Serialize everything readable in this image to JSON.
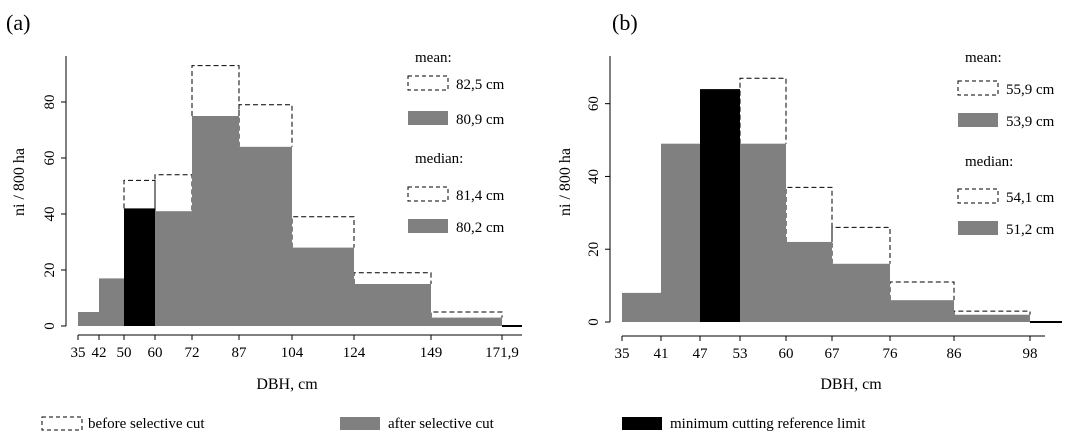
{
  "chart_data": [
    {
      "type": "bar",
      "panel_label": "(a)",
      "xlabel": "DBH, cm",
      "ylabel": "ni / 800 ha",
      "ylim": [
        0,
        95
      ],
      "yticks": [
        0,
        20,
        40,
        60,
        80
      ],
      "xticks": [
        "35",
        "42",
        "50",
        "60",
        "72",
        "87",
        "104",
        "124",
        "149",
        "171,9"
      ],
      "bin_edges": [
        35,
        42,
        50,
        60,
        72,
        87,
        104,
        124,
        149,
        171.9
      ],
      "series": [
        {
          "name": "before selective cut",
          "values": [
            5,
            17,
            52,
            54,
            93,
            79,
            39,
            19,
            5,
            0
          ]
        },
        {
          "name": "after selective cut",
          "values": [
            5,
            17,
            42,
            41,
            75,
            64,
            28,
            15,
            3,
            0
          ]
        }
      ],
      "reference_bin_index": 2,
      "legend": {
        "mean_title": "mean:",
        "mean_before": "82,5 cm",
        "mean_after": "80,9 cm",
        "median_title": "median:",
        "median_before": "81,4 cm",
        "median_after": "80,2 cm"
      }
    },
    {
      "type": "bar",
      "panel_label": "(b)",
      "xlabel": "DBH, cm",
      "ylabel": "ni / 800 ha",
      "ylim": [
        0,
        72
      ],
      "yticks": [
        0,
        20,
        40,
        60
      ],
      "xticks": [
        "35",
        "41",
        "47",
        "53",
        "60",
        "67",
        "76",
        "86",
        "98"
      ],
      "bin_edges": [
        35,
        41,
        47,
        53,
        60,
        67,
        76,
        86,
        98,
        102
      ],
      "series": [
        {
          "name": "before selective cut",
          "values": [
            8,
            49,
            64,
            67,
            37,
            26,
            11,
            3,
            0
          ]
        },
        {
          "name": "after selective cut",
          "values": [
            8,
            49,
            64,
            49,
            22,
            16,
            6,
            2,
            0
          ]
        }
      ],
      "reference_bin_index": 2,
      "legend": {
        "mean_title": "mean:",
        "mean_before": "55,9 cm",
        "mean_after": "53,9 cm",
        "median_title": "median:",
        "median_before": "54,1 cm",
        "median_after": "51,2 cm"
      }
    }
  ],
  "bottom_legend": {
    "before": "before selective cut",
    "after": "after selective cut",
    "reference": "minimum cutting reference limit"
  },
  "colors": {
    "after_fill": "#808080",
    "reference_fill": "#000000",
    "before_outline": "#000000"
  }
}
